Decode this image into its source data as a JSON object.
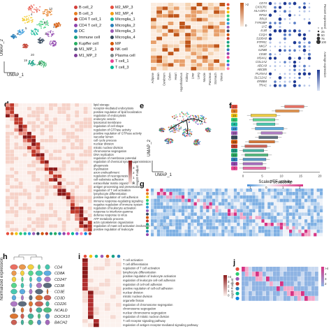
{
  "panels": {
    "a_umap": {
      "xlabel": "UMAP_1",
      "ylabel": "UMAP_2"
    },
    "a_legend": {
      "col1": [
        {
          "label": "B cell_2",
          "color": "#d43f3a"
        },
        {
          "label": "B cell_3",
          "color": "#e67e22"
        },
        {
          "label": "CD4 T cell_1",
          "color": "#c0392b"
        },
        {
          "label": "CD4 T cell_2",
          "color": "#8e44ad"
        },
        {
          "label": "DC",
          "color": "#2e86c1"
        },
        {
          "label": "Immune cell",
          "color": "#16a085"
        },
        {
          "label": "Kupffer cell",
          "color": "#27ae60"
        },
        {
          "label": "M1_MP_1",
          "color": "#5d6d7e"
        },
        {
          "label": "M1_MP_2",
          "color": "#7d3c98"
        }
      ],
      "col2": [
        {
          "label": "M2_MP_3",
          "color": "#e74c3c"
        },
        {
          "label": "M2_MP_4",
          "color": "#f39c12"
        },
        {
          "label": "Microglia_1",
          "color": "#1abc9c"
        },
        {
          "label": "Microglia_2",
          "color": "#2980b9"
        },
        {
          "label": "Microglia_3",
          "color": "#9b59b6"
        },
        {
          "label": "Microglia_4",
          "color": "#34495e"
        },
        {
          "label": "MP",
          "color": "#d35400"
        },
        {
          "label": "NK cell",
          "color": "#c0392b"
        },
        {
          "label": "Plasma cell",
          "color": "#7f8c8d"
        },
        {
          "label": "T cell_1",
          "color": "#e84393"
        },
        {
          "label": "T cell_3",
          "color": "#00b894"
        }
      ]
    },
    "b_tissues": [
      "Adipose",
      "Brain",
      "Cerebrum",
      "Colon",
      "Heart",
      "Hypothalamus",
      "Kidney",
      "Liver",
      "Lung",
      "Muscle",
      "Pancreas",
      "Stomach",
      "Uterus"
    ],
    "b_scale": {
      "top": ">2",
      "bottom": "0"
    },
    "c_genes": [
      "CD74",
      "CX3CR1",
      "HLA-DRA",
      "RPS2",
      "RPL8",
      "TYROBP",
      "LYZ",
      "IL1B",
      "C1QA",
      "S100A8",
      "PTPRC",
      "NKG7",
      "GZMB",
      "CD3E",
      "MS4A1",
      "COL1A2",
      "ABCA9",
      "ABCB5",
      "PLXNA4",
      "SLC12A2",
      "ERBB4",
      "TRAC"
    ],
    "c_size": {
      "title": "Percent expressed",
      "values": [
        "0",
        "25",
        "50",
        "75",
        "100"
      ]
    },
    "c_avg": {
      "title": "Average expression"
    },
    "d_terms": [
      "lipid storage",
      "receptor-mediated endocytosis",
      "positive regulation of lipid localization",
      "regulation of endocytosis",
      "endocytic vesicle",
      "lysosomal membrane",
      "regulation of cell shape",
      "regulation of GTPase activity",
      "positive regulation of GTPase activity",
      "vacuolar lumen",
      "cell cycle process",
      "nuclear division",
      "mitotic nuclear division",
      "chromosome segregation",
      "DNA replication",
      "regulation of membrane potential",
      "regulation of chemical synaptic transmission",
      "gliogenesis",
      "myelination",
      "axon ensheathment",
      "regulation of neurogenesis",
      "cell-substrate adhesion",
      "extracellular matrix organization",
      "antigen processing and presentation",
      "regulation of T cell activation",
      "lymphocyte differentiation",
      "positive regulation of cell adhesion",
      "immune response-regulating signaling",
      "negative regulation of immune system",
      "regulation of leukocyte activation",
      "response to interferon-gamma",
      "defense response to virus",
      "ATP metabolic process",
      "actin cytoskeleton organization",
      "regulation of mast cell activation involved in immune response",
      "positive regulation of leukocyte"
    ],
    "d_scale": {
      "title": "-log10 P.adjust",
      "top": ">4",
      "vals": [
        "3",
        "2",
        "1",
        "0"
      ]
    },
    "e_umap": {
      "xlabel": "UMAP_1",
      "ylabel": "UMAP_2"
    },
    "f_plot": {
      "xlabel": "Pseudotime",
      "ticks": [
        "0",
        "5",
        "10",
        "15",
        "20"
      ],
      "clusters": [
        "20",
        "9",
        "15",
        "11",
        "4",
        "19",
        "16",
        "14",
        "18",
        "6",
        "13",
        "12",
        "8",
        "2",
        "3"
      ]
    },
    "g_plot": {
      "title": "Scaled TF activity",
      "ticks": [
        "-1",
        "0",
        "1",
        "2"
      ]
    },
    "h_plot": {
      "ylabel": "Normalized expression",
      "genes": [
        "CD4",
        "CD8A",
        "CD247",
        "CD38",
        "CD3E",
        "CD3D",
        "CD226",
        "NCALD",
        "DOCK10",
        "BACH2"
      ]
    },
    "i_terms": [
      "T cell activation",
      "T cell differentiation",
      "regulation of T cell activation",
      "lymphocyte differentiation",
      "positive regulation of leukocyte activation",
      "regulation of leukocyte cell-cell adhesion",
      "regulation of cell-cell adhesion",
      "positive regulation of cell-cell adhesion",
      "nuclear division",
      "mitotic nuclear division",
      "organelle fission",
      "regulation of chromosome segregation",
      "chromosome segregation",
      "nuclear chromosome segregation",
      "regulation of mitotic nuclear division",
      "T cell receptor signaling pathway",
      "regulation of antigen receptor-mediated signaling pathway"
    ],
    "i_scale": {
      "title": "-log10 P.adjust",
      "top": ">4",
      "vals": [
        "3",
        "2",
        "1",
        "0"
      ]
    },
    "j_scale": {
      "top": ">4",
      "vals": [
        "4",
        "3",
        "2"
      ]
    },
    "labels": {
      "d": "d",
      "e": "e",
      "f": "f",
      "g": "g",
      "h": "h",
      "i": "i",
      "j": "j"
    }
  },
  "colors": {
    "heat_low": "#fbe9e1",
    "heat_high": "#8b0000",
    "accent": "#d35400"
  }
}
